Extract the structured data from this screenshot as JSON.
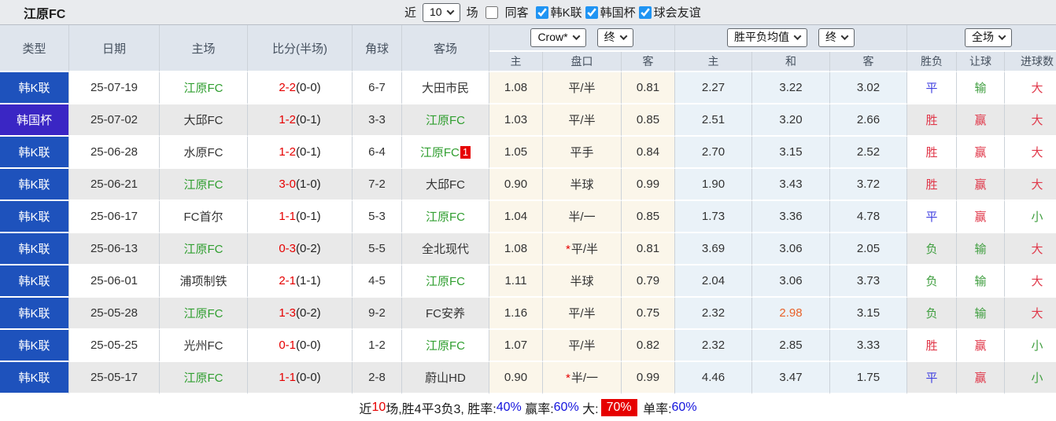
{
  "title": "江原FC",
  "filter_bar": {
    "near_label": "近",
    "near_value": "10",
    "games_label": "场",
    "same_away": {
      "label": "同客",
      "checked": false
    },
    "leagues": [
      {
        "label": "韩K联",
        "checked": true
      },
      {
        "label": "韩国杯",
        "checked": true
      },
      {
        "label": "球会友谊",
        "checked": true
      }
    ]
  },
  "colors": {
    "league_blue": "#1e52bc",
    "cup_indigo": "#3a26c4",
    "self_team_green": "#2f9e2f",
    "score_red": "#e60000",
    "win_red": "#e0384a",
    "draw_blue": "#4040e0",
    "lose_green": "#3f9e3f",
    "highlight_orange": "#e8622a",
    "checkbox_blue": "#2094f3",
    "stat_blue": "#1414dd"
  },
  "table": {
    "left_columns": [
      "类型",
      "日期",
      "主场",
      "比分(半场)",
      "角球",
      "客场"
    ],
    "handicap_company_select": "Crow*",
    "handicap_time_select": "终",
    "handicap_sub": [
      "主",
      "盘口",
      "客"
    ],
    "avg_select": "胜平负均值",
    "avg_time_select": "终",
    "avg_sub": [
      "主",
      "和",
      "客"
    ],
    "scope_select": "全场",
    "result_sub": [
      "胜负",
      "让球",
      "进球数"
    ],
    "rows": [
      {
        "type": "韩K联",
        "type_key": "k",
        "date": "25-07-19",
        "home": {
          "name": "江原FC",
          "self": true
        },
        "score": "2-2",
        "half": "(0-0)",
        "corners": "6-7",
        "away": {
          "name": "大田市民",
          "self": false
        },
        "ah_home": "1.08",
        "handicap": "平/半",
        "star": false,
        "ah_away": "0.81",
        "avg_home": "2.27",
        "avg_draw": "3.22",
        "avg_away": "3.02",
        "draw_hl": false,
        "result": {
          "text": "平",
          "c": "blue"
        },
        "handicap_result": {
          "text": "输",
          "c": "green"
        },
        "goals": {
          "text": "大",
          "c": "red"
        }
      },
      {
        "type": "韩国杯",
        "type_key": "cup",
        "date": "25-07-02",
        "home": {
          "name": "大邱FC",
          "self": false
        },
        "score": "1-2",
        "half": "(0-1)",
        "corners": "3-3",
        "away": {
          "name": "江原FC",
          "self": true
        },
        "ah_home": "1.03",
        "handicap": "平/半",
        "star": false,
        "ah_away": "0.85",
        "avg_home": "2.51",
        "avg_draw": "3.20",
        "avg_away": "2.66",
        "draw_hl": false,
        "result": {
          "text": "胜",
          "c": "red"
        },
        "handicap_result": {
          "text": "赢",
          "c": "red"
        },
        "goals": {
          "text": "大",
          "c": "red"
        }
      },
      {
        "type": "韩K联",
        "type_key": "k",
        "date": "25-06-28",
        "home": {
          "name": "水原FC",
          "self": false
        },
        "score": "1-2",
        "half": "(0-1)",
        "corners": "6-4",
        "away": {
          "name": "江原FC",
          "self": true,
          "badge": "1"
        },
        "ah_home": "1.05",
        "handicap": "平手",
        "star": false,
        "ah_away": "0.84",
        "avg_home": "2.70",
        "avg_draw": "3.15",
        "avg_away": "2.52",
        "draw_hl": false,
        "result": {
          "text": "胜",
          "c": "red"
        },
        "handicap_result": {
          "text": "赢",
          "c": "red"
        },
        "goals": {
          "text": "大",
          "c": "red"
        }
      },
      {
        "type": "韩K联",
        "type_key": "k",
        "date": "25-06-21",
        "home": {
          "name": "江原FC",
          "self": true
        },
        "score": "3-0",
        "half": "(1-0)",
        "corners": "7-2",
        "away": {
          "name": "大邱FC",
          "self": false
        },
        "ah_home": "0.90",
        "handicap": "半球",
        "star": false,
        "ah_away": "0.99",
        "avg_home": "1.90",
        "avg_draw": "3.43",
        "avg_away": "3.72",
        "draw_hl": false,
        "result": {
          "text": "胜",
          "c": "red"
        },
        "handicap_result": {
          "text": "赢",
          "c": "red"
        },
        "goals": {
          "text": "大",
          "c": "red"
        }
      },
      {
        "type": "韩K联",
        "type_key": "k",
        "date": "25-06-17",
        "home": {
          "name": "FC首尔",
          "self": false
        },
        "score": "1-1",
        "half": "(0-1)",
        "corners": "5-3",
        "away": {
          "name": "江原FC",
          "self": true
        },
        "ah_home": "1.04",
        "handicap": "半/一",
        "star": false,
        "ah_away": "0.85",
        "avg_home": "1.73",
        "avg_draw": "3.36",
        "avg_away": "4.78",
        "draw_hl": false,
        "result": {
          "text": "平",
          "c": "blue"
        },
        "handicap_result": {
          "text": "赢",
          "c": "red"
        },
        "goals": {
          "text": "小",
          "c": "green"
        }
      },
      {
        "type": "韩K联",
        "type_key": "k",
        "date": "25-06-13",
        "home": {
          "name": "江原FC",
          "self": true
        },
        "score": "0-3",
        "half": "(0-2)",
        "corners": "5-5",
        "away": {
          "name": "全北现代",
          "self": false
        },
        "ah_home": "1.08",
        "handicap": "平/半",
        "star": true,
        "ah_away": "0.81",
        "avg_home": "3.69",
        "avg_draw": "3.06",
        "avg_away": "2.05",
        "draw_hl": false,
        "result": {
          "text": "负",
          "c": "green"
        },
        "handicap_result": {
          "text": "输",
          "c": "green"
        },
        "goals": {
          "text": "大",
          "c": "red"
        }
      },
      {
        "type": "韩K联",
        "type_key": "k",
        "date": "25-06-01",
        "home": {
          "name": "浦项制铁",
          "self": false
        },
        "score": "2-1",
        "half": "(1-1)",
        "corners": "4-5",
        "away": {
          "name": "江原FC",
          "self": true
        },
        "ah_home": "1.11",
        "handicap": "半球",
        "star": false,
        "ah_away": "0.79",
        "avg_home": "2.04",
        "avg_draw": "3.06",
        "avg_away": "3.73",
        "draw_hl": false,
        "result": {
          "text": "负",
          "c": "green"
        },
        "handicap_result": {
          "text": "输",
          "c": "green"
        },
        "goals": {
          "text": "大",
          "c": "red"
        }
      },
      {
        "type": "韩K联",
        "type_key": "k",
        "date": "25-05-28",
        "home": {
          "name": "江原FC",
          "self": true
        },
        "score": "1-3",
        "half": "(0-2)",
        "corners": "9-2",
        "away": {
          "name": "FC安养",
          "self": false
        },
        "ah_home": "1.16",
        "handicap": "平/半",
        "star": false,
        "ah_away": "0.75",
        "avg_home": "2.32",
        "avg_draw": "2.98",
        "avg_away": "3.15",
        "draw_hl": true,
        "result": {
          "text": "负",
          "c": "green"
        },
        "handicap_result": {
          "text": "输",
          "c": "green"
        },
        "goals": {
          "text": "大",
          "c": "red"
        }
      },
      {
        "type": "韩K联",
        "type_key": "k",
        "date": "25-05-25",
        "home": {
          "name": "光州FC",
          "self": false
        },
        "score": "0-1",
        "half": "(0-0)",
        "corners": "1-2",
        "away": {
          "name": "江原FC",
          "self": true
        },
        "ah_home": "1.07",
        "handicap": "平/半",
        "star": false,
        "ah_away": "0.82",
        "avg_home": "2.32",
        "avg_draw": "2.85",
        "avg_away": "3.33",
        "draw_hl": false,
        "result": {
          "text": "胜",
          "c": "red"
        },
        "handicap_result": {
          "text": "赢",
          "c": "red"
        },
        "goals": {
          "text": "小",
          "c": "green"
        }
      },
      {
        "type": "韩K联",
        "type_key": "k",
        "date": "25-05-17",
        "home": {
          "name": "江原FC",
          "self": true
        },
        "score": "1-1",
        "half": "(0-0)",
        "corners": "2-8",
        "away": {
          "name": "蔚山HD",
          "self": false
        },
        "ah_home": "0.90",
        "handicap": "半/一",
        "star": true,
        "ah_away": "0.99",
        "avg_home": "4.46",
        "avg_draw": "3.47",
        "avg_away": "1.75",
        "draw_hl": false,
        "result": {
          "text": "平",
          "c": "blue"
        },
        "handicap_result": {
          "text": "赢",
          "c": "red"
        },
        "goals": {
          "text": "小",
          "c": "green"
        }
      }
    ]
  },
  "footer": {
    "segments": [
      {
        "text": "近",
        "style": "plain"
      },
      {
        "text": "10",
        "style": "red"
      },
      {
        "text": "场,胜4平3负3, 胜率:",
        "style": "plain"
      },
      {
        "text": "40%",
        "style": "blue"
      },
      {
        "text": " 赢率:",
        "style": "plain"
      },
      {
        "text": "60%",
        "style": "blue"
      },
      {
        "text": " 大:",
        "style": "plain"
      },
      {
        "text": "70%",
        "style": "redbg"
      },
      {
        "text": " 单率:",
        "style": "plain"
      },
      {
        "text": "60%",
        "style": "blue"
      }
    ]
  }
}
